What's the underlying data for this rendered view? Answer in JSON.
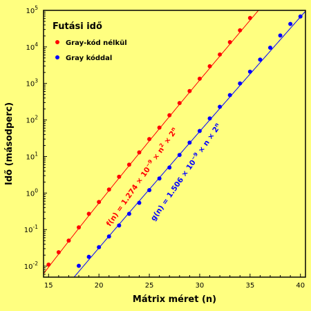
{
  "chart_data": {
    "type": "scatter",
    "x_scale": "linear",
    "y_scale": "log",
    "xlim": [
      14.5,
      40.5
    ],
    "ylim": [
      0.005,
      100000
    ],
    "xlabel": "Mátrix méret (n)",
    "ylabel": "Idő (másodperc)",
    "x_ticks": [
      "15",
      "20",
      "25",
      "30",
      "35",
      "40"
    ],
    "y_ticks": [
      {
        "base": "10",
        "exp": "-2"
      },
      {
        "base": "10",
        "exp": "-1"
      },
      {
        "base": "10",
        "exp": "0"
      },
      {
        "base": "10",
        "exp": "1"
      },
      {
        "base": "10",
        "exp": "2"
      },
      {
        "base": "10",
        "exp": "3"
      },
      {
        "base": "10",
        "exp": "4"
      },
      {
        "base": "10",
        "exp": "5"
      }
    ],
    "legend": {
      "title": "Futási idő",
      "placement": "top-left",
      "items": [
        "Gray-kód nélkül",
        "Gray kóddal"
      ]
    },
    "series": [
      {
        "name": "Gray-kód nélkül",
        "color": "#FF0000",
        "x": [
          15,
          16,
          17,
          18,
          19,
          20,
          21,
          22,
          23,
          24,
          25,
          26,
          27,
          28,
          29,
          30,
          31,
          32,
          33,
          34,
          35
        ],
        "y": [
          0.011,
          0.024,
          0.05,
          0.115,
          0.27,
          0.57,
          1.25,
          2.8,
          6.0,
          13,
          30,
          62,
          135,
          290,
          620,
          1350,
          2950,
          6200,
          13500,
          28500,
          62000
        ],
        "fit_coefficient": 1.274e-09,
        "fit_form": "n2"
      },
      {
        "name": "Gray kóddal",
        "color": "#0000FF",
        "x": [
          18,
          19,
          20,
          21,
          22,
          23,
          24,
          25,
          26,
          27,
          28,
          29,
          30,
          31,
          32,
          33,
          34,
          35,
          36,
          37,
          38,
          39,
          40
        ],
        "y": [
          0.0102,
          0.018,
          0.033,
          0.065,
          0.13,
          0.27,
          0.54,
          1.2,
          2.5,
          5.0,
          11,
          24,
          50,
          110,
          230,
          480,
          1000,
          2100,
          4500,
          9500,
          20500,
          42500,
          68000
        ],
        "fit_coefficient": 1.506e-09,
        "fit_form": "n"
      }
    ],
    "annotations": [
      {
        "series": 0,
        "color": "#FF0000",
        "parts": [
          "f(n) = 1.274 × 10",
          "−9",
          " × n",
          "2",
          " × 2",
          "n"
        ],
        "at_x": 21.3,
        "angle": -55
      },
      {
        "series": 1,
        "color": "#0000FF",
        "parts": [
          "g(n) = 1.506 × 10",
          "−9",
          " × n × 2",
          "n"
        ],
        "at_x": 25.7,
        "angle": -55
      }
    ],
    "grid": false,
    "background": "#FFFF80"
  }
}
